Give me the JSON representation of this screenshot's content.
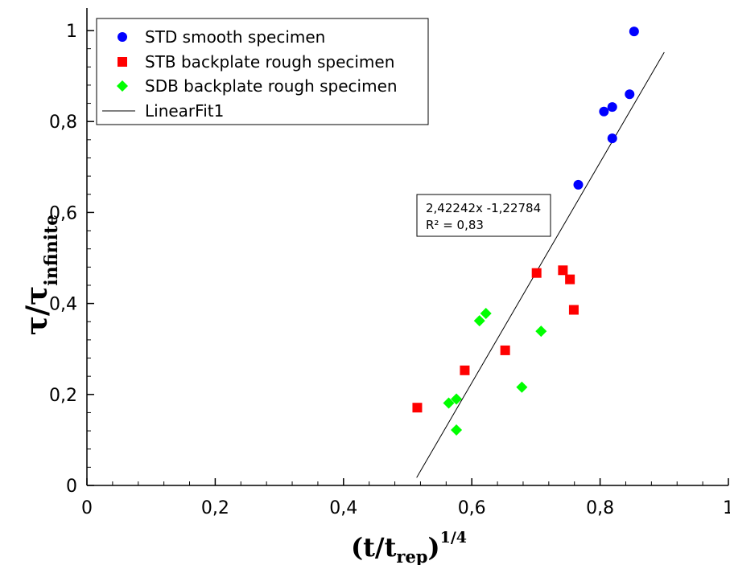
{
  "chart_data": {
    "type": "scatter",
    "xlim": [
      0,
      1
    ],
    "ylim": [
      0,
      1
    ],
    "x_ticks": [
      {
        "value": 0,
        "label": "0"
      },
      {
        "value": 0.2,
        "label": "0,2"
      },
      {
        "value": 0.4,
        "label": "0,4"
      },
      {
        "value": 0.6,
        "label": "0,6"
      },
      {
        "value": 0.8,
        "label": "0,8"
      },
      {
        "value": 1,
        "label": "1"
      }
    ],
    "y_ticks": [
      {
        "value": 0,
        "label": "0"
      },
      {
        "value": 0.2,
        "label": "0,2"
      },
      {
        "value": 0.4,
        "label": "0,4"
      },
      {
        "value": 0.6,
        "label": "0,6"
      },
      {
        "value": 0.8,
        "label": "0,8"
      },
      {
        "value": 1,
        "label": "1"
      }
    ],
    "xlabel": {
      "main": "(t/t",
      "sub": "rep",
      "close": ")",
      "sup": "1/4"
    },
    "ylabel": {
      "main": "τ/τ",
      "sub": "infinite"
    },
    "grid": false,
    "legend_position": "top-left",
    "series": [
      {
        "name": "STD smooth specimen",
        "marker": "circle",
        "color": "#0000ff",
        "points": [
          {
            "x": 0.853,
            "y": 0.998
          },
          {
            "x": 0.846,
            "y": 0.86
          },
          {
            "x": 0.819,
            "y": 0.832
          },
          {
            "x": 0.806,
            "y": 0.822
          },
          {
            "x": 0.819,
            "y": 0.763
          },
          {
            "x": 0.766,
            "y": 0.661
          }
        ]
      },
      {
        "name": "STB backplate rough specimen",
        "marker": "square",
        "color": "#ff0000",
        "points": [
          {
            "x": 0.515,
            "y": 0.171
          },
          {
            "x": 0.589,
            "y": 0.253
          },
          {
            "x": 0.652,
            "y": 0.297
          },
          {
            "x": 0.701,
            "y": 0.467
          },
          {
            "x": 0.742,
            "y": 0.473
          },
          {
            "x": 0.753,
            "y": 0.453
          },
          {
            "x": 0.759,
            "y": 0.386
          }
        ]
      },
      {
        "name": "SDB backplate rough specimen",
        "marker": "diamond",
        "color": "#00ff00",
        "points": [
          {
            "x": 0.564,
            "y": 0.181
          },
          {
            "x": 0.576,
            "y": 0.19
          },
          {
            "x": 0.576,
            "y": 0.122
          },
          {
            "x": 0.612,
            "y": 0.362
          },
          {
            "x": 0.622,
            "y": 0.378
          },
          {
            "x": 0.708,
            "y": 0.339
          },
          {
            "x": 0.678,
            "y": 0.216
          }
        ]
      }
    ],
    "fit": {
      "name": "LinearFit1",
      "slope": 2.42242,
      "intercept": -1.22784,
      "x_range": [
        0.514,
        0.9
      ],
      "color": "#000000",
      "equation": "2,42242x -1,22784",
      "r2_label": "R² = 0,83"
    }
  }
}
